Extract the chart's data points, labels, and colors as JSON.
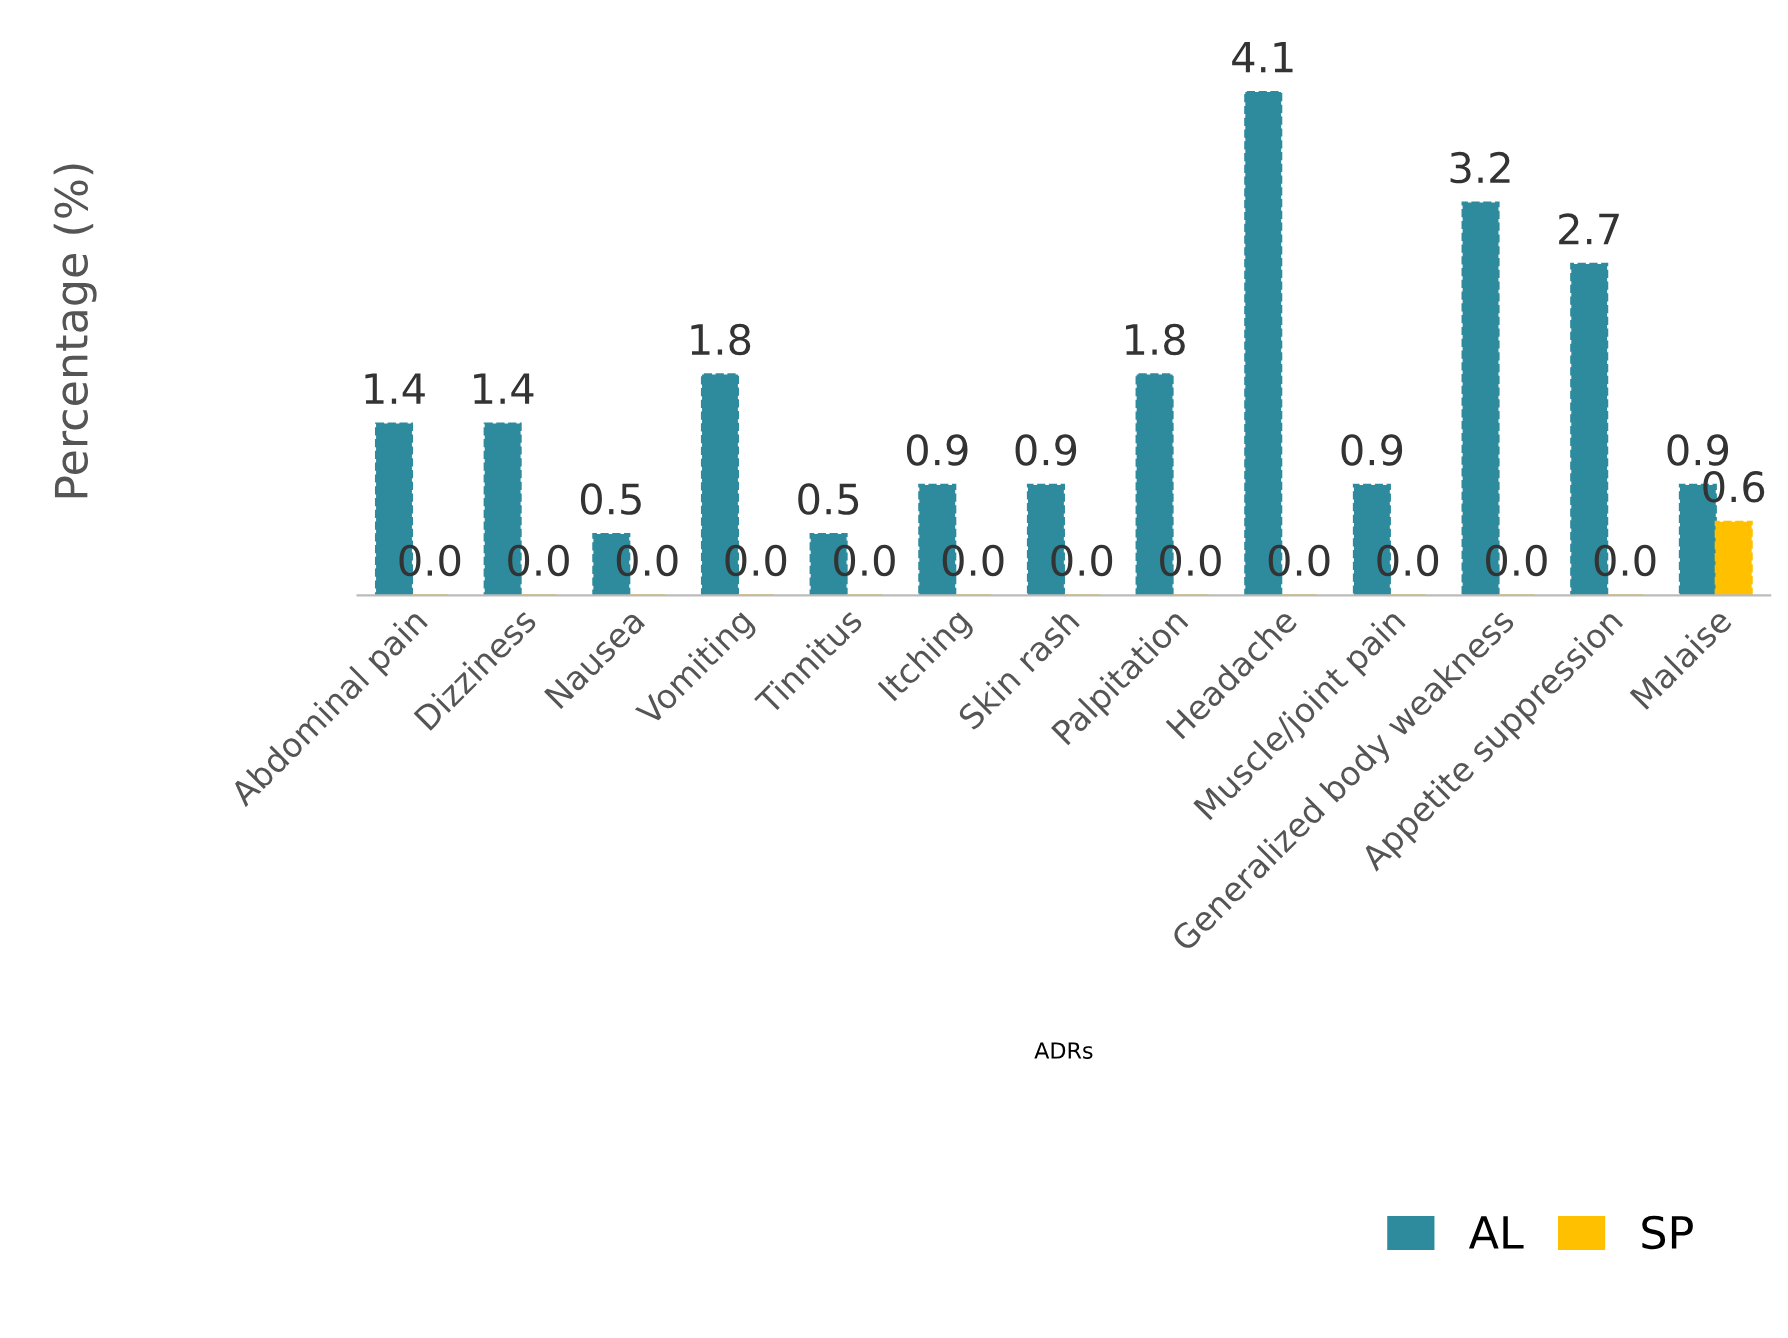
{
  "chart_data": {
    "type": "bar",
    "xlabel": "ADRs",
    "ylabel": "Percentage (%)",
    "categories": [
      "Abdominal pain",
      "Dizziness",
      "Nausea",
      "Vomiting",
      "Tinnitus",
      "Itching",
      "Skin rash",
      "Palpitation",
      "Headache",
      "Muscle/joint pain",
      "Generalized body weakness",
      "Appetite suppression",
      "Malaise"
    ],
    "series": [
      {
        "name": "AL",
        "color": "#2e8b9e",
        "values": [
          1.4,
          1.4,
          0.5,
          1.8,
          0.5,
          0.9,
          0.9,
          1.8,
          4.1,
          0.9,
          3.2,
          2.7,
          0.9
        ],
        "value_labels": [
          "1.4",
          "1.4",
          "0.5",
          "1.8",
          "0.5",
          "0.9",
          "0.9",
          "1.8",
          "4.1",
          "0.9",
          "3.2",
          "2.7",
          "0.9"
        ]
      },
      {
        "name": "SP",
        "color": "#ffc000",
        "values": [
          0.0,
          0.0,
          0.0,
          0.0,
          0.0,
          0.0,
          0.0,
          0.0,
          0.0,
          0.0,
          0.0,
          0.0,
          0.6
        ],
        "value_labels": [
          "0.0",
          "0.0",
          "0.0",
          "0.0",
          "0.0",
          "0.0",
          "0.0",
          "0.0",
          "0.0",
          "0.0",
          "0.0",
          "0.0",
          "0.6"
        ]
      }
    ],
    "tick_labels": "x",
    "grid": false,
    "legend": "bottom right"
  }
}
